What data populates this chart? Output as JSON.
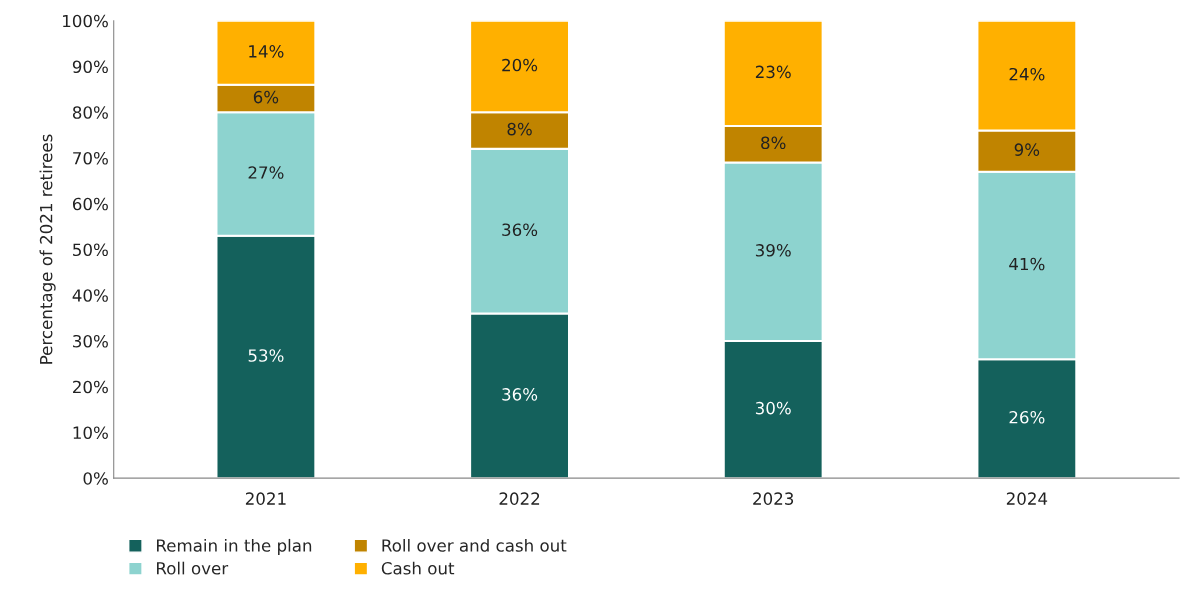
{
  "chart_data": {
    "type": "bar",
    "stacked": true,
    "ylabel": "Percentage of 2021 retirees",
    "categories": [
      "2021",
      "2022",
      "2023",
      "2024"
    ],
    "series": [
      {
        "name": "Remain in the plan",
        "color": "#14615c",
        "values": [
          53,
          36,
          30,
          26
        ],
        "value_labels": [
          "53%",
          "36%",
          "30%",
          "26%"
        ]
      },
      {
        "name": "Roll over",
        "color": "#8dd3cf",
        "values": [
          27,
          36,
          39,
          41
        ],
        "value_labels": [
          "27%",
          "36%",
          "39%",
          "41%"
        ]
      },
      {
        "name": "Roll over and cash out",
        "color": "#c08400",
        "values": [
          6,
          8,
          8,
          9
        ],
        "value_labels": [
          "6%",
          "8%",
          "8%",
          "9%"
        ]
      },
      {
        "name": "Cash out",
        "color": "#ffb000",
        "values": [
          14,
          20,
          23,
          24
        ],
        "value_labels": [
          "14%",
          "20%",
          "23%",
          "24%"
        ]
      }
    ],
    "ylim": [
      0,
      100
    ],
    "yticks": [
      {
        "value": 0,
        "label": "0%"
      },
      {
        "value": 10,
        "label": "10%"
      },
      {
        "value": 20,
        "label": "20%"
      },
      {
        "value": 30,
        "label": "30%"
      },
      {
        "value": 40,
        "label": "40%"
      },
      {
        "value": 50,
        "label": "50%"
      },
      {
        "value": 60,
        "label": "60%"
      },
      {
        "value": 70,
        "label": "70%"
      },
      {
        "value": 80,
        "label": "80%"
      },
      {
        "value": 90,
        "label": "90%"
      },
      {
        "value": 100,
        "label": "100%"
      }
    ],
    "grid": false,
    "legend": "bottom"
  }
}
